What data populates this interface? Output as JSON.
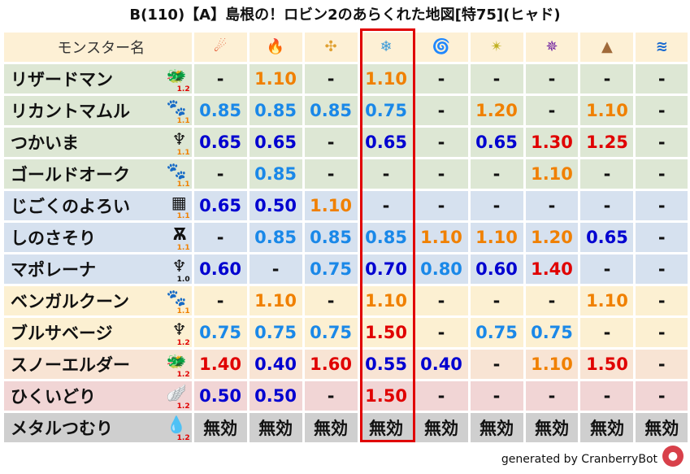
{
  "title": "B(110)【A】島根の！ロビン2のあらくれた地図[特75](ヒャド)",
  "header": {
    "name_label": "モンスター名",
    "elements": [
      {
        "icon": "fireball-icon",
        "glyph": "☄",
        "color": "#e0401a"
      },
      {
        "icon": "flame-icon",
        "glyph": "🔥",
        "color": "#f04010"
      },
      {
        "icon": "explosion-icon",
        "glyph": "✣",
        "color": "#e0a030"
      },
      {
        "icon": "ice-icon",
        "glyph": "❄",
        "color": "#3a9ad9"
      },
      {
        "icon": "wind-icon",
        "glyph": "🌀",
        "color": "#3aa880"
      },
      {
        "icon": "lightning-icon",
        "glyph": "✴",
        "color": "#c0b020"
      },
      {
        "icon": "darkness-icon",
        "glyph": "✵",
        "color": "#7020a0"
      },
      {
        "icon": "earth-icon",
        "glyph": "▲",
        "color": "#a06a3a"
      },
      {
        "icon": "water-icon",
        "glyph": "≋",
        "color": "#1a6ad0"
      }
    ]
  },
  "highlight_column": 3,
  "colors": {
    "dark_blue": "#0000d0",
    "light_blue": "#1a88e8",
    "orange": "#f08000",
    "red": "#e00000",
    "dash": "#111111"
  },
  "rows": [
    {
      "name": "リザードマン",
      "icon": "dragon-icon",
      "glyph": "🐲",
      "weight": "1.2",
      "wcolor": "#e00000",
      "bg": "#dde7d4",
      "values": [
        "-",
        "1.10",
        "-",
        "1.10",
        "-",
        "-",
        "-",
        "-",
        "-"
      ]
    },
    {
      "name": "リカントマムル",
      "icon": "paw-icon",
      "glyph": "🐾",
      "weight": "1.1",
      "wcolor": "#f08000",
      "bg": "#dde7d4",
      "values": [
        "0.85",
        "0.85",
        "0.85",
        "0.75",
        "-",
        "1.20",
        "-",
        "1.10",
        "-"
      ]
    },
    {
      "name": "つかいま",
      "icon": "demon-icon",
      "glyph": "♆",
      "weight": "1.1",
      "wcolor": "#f08000",
      "bg": "#dde7d4",
      "values": [
        "0.65",
        "0.65",
        "-",
        "0.65",
        "-",
        "0.65",
        "1.30",
        "1.25",
        "-"
      ]
    },
    {
      "name": "ゴールドオーク",
      "icon": "paw-icon",
      "glyph": "🐾",
      "weight": "1.1",
      "wcolor": "#f08000",
      "bg": "#dde7d4",
      "values": [
        "-",
        "0.85",
        "-",
        "-",
        "-",
        "-",
        "1.10",
        "-",
        "-"
      ]
    },
    {
      "name": "じごくのよろい",
      "icon": "material-icon",
      "glyph": "▦",
      "weight": "1.1",
      "wcolor": "#f08000",
      "bg": "#d6e1ef",
      "values": [
        "0.65",
        "0.50",
        "1.10",
        "-",
        "-",
        "-",
        "-",
        "-",
        "-"
      ]
    },
    {
      "name": "しのさそり",
      "icon": "insect-icon",
      "glyph": "Ѫ",
      "weight": "1.1",
      "wcolor": "#f08000",
      "bg": "#d6e1ef",
      "values": [
        "-",
        "0.85",
        "0.85",
        "0.85",
        "1.10",
        "1.10",
        "1.20",
        "0.65",
        "-"
      ]
    },
    {
      "name": "マポレーナ",
      "icon": "demon-icon",
      "glyph": "♆",
      "weight": "1.0",
      "wcolor": "#111111",
      "bg": "#d6e1ef",
      "values": [
        "0.60",
        "-",
        "0.75",
        "0.70",
        "0.80",
        "0.60",
        "1.40",
        "-",
        "-"
      ]
    },
    {
      "name": "ベンガルクーン",
      "icon": "paw-icon",
      "glyph": "🐾",
      "weight": "1.1",
      "wcolor": "#f08000",
      "bg": "#fcf0d2",
      "values": [
        "-",
        "1.10",
        "-",
        "1.10",
        "-",
        "-",
        "-",
        "1.10",
        "-"
      ]
    },
    {
      "name": "ブルサベージ",
      "icon": "demon-icon",
      "glyph": "♆",
      "weight": "1.2",
      "wcolor": "#e00000",
      "bg": "#fcf0d2",
      "values": [
        "0.75",
        "0.75",
        "0.75",
        "1.50",
        "-",
        "0.75",
        "0.75",
        "-",
        "-"
      ]
    },
    {
      "name": "スノーエルダー",
      "icon": "dragon-icon",
      "glyph": "🐲",
      "weight": "1.2",
      "wcolor": "#e00000",
      "bg": "#f8e4d4",
      "values": [
        "1.40",
        "0.40",
        "1.60",
        "0.55",
        "0.40",
        "-",
        "1.10",
        "1.50",
        "-"
      ]
    },
    {
      "name": "ひくいどり",
      "icon": "bird-icon",
      "glyph": "🪽",
      "weight": "1.2",
      "wcolor": "#e00000",
      "bg": "#f1d5d5",
      "values": [
        "0.50",
        "0.50",
        "-",
        "1.50",
        "-",
        "-",
        "-",
        "-",
        "-"
      ]
    },
    {
      "name": "メタルつむり",
      "icon": "slime-icon",
      "glyph": "💧",
      "weight": "1.2",
      "wcolor": "#e00000",
      "bg": "#cfcfcf",
      "values": [
        "無効",
        "無効",
        "無効",
        "無効",
        "無効",
        "無効",
        "無効",
        "無効",
        "無効"
      ]
    }
  ],
  "footer": {
    "text": "generated by CranberryBot",
    "bot_icon": "cranberry-icon"
  }
}
